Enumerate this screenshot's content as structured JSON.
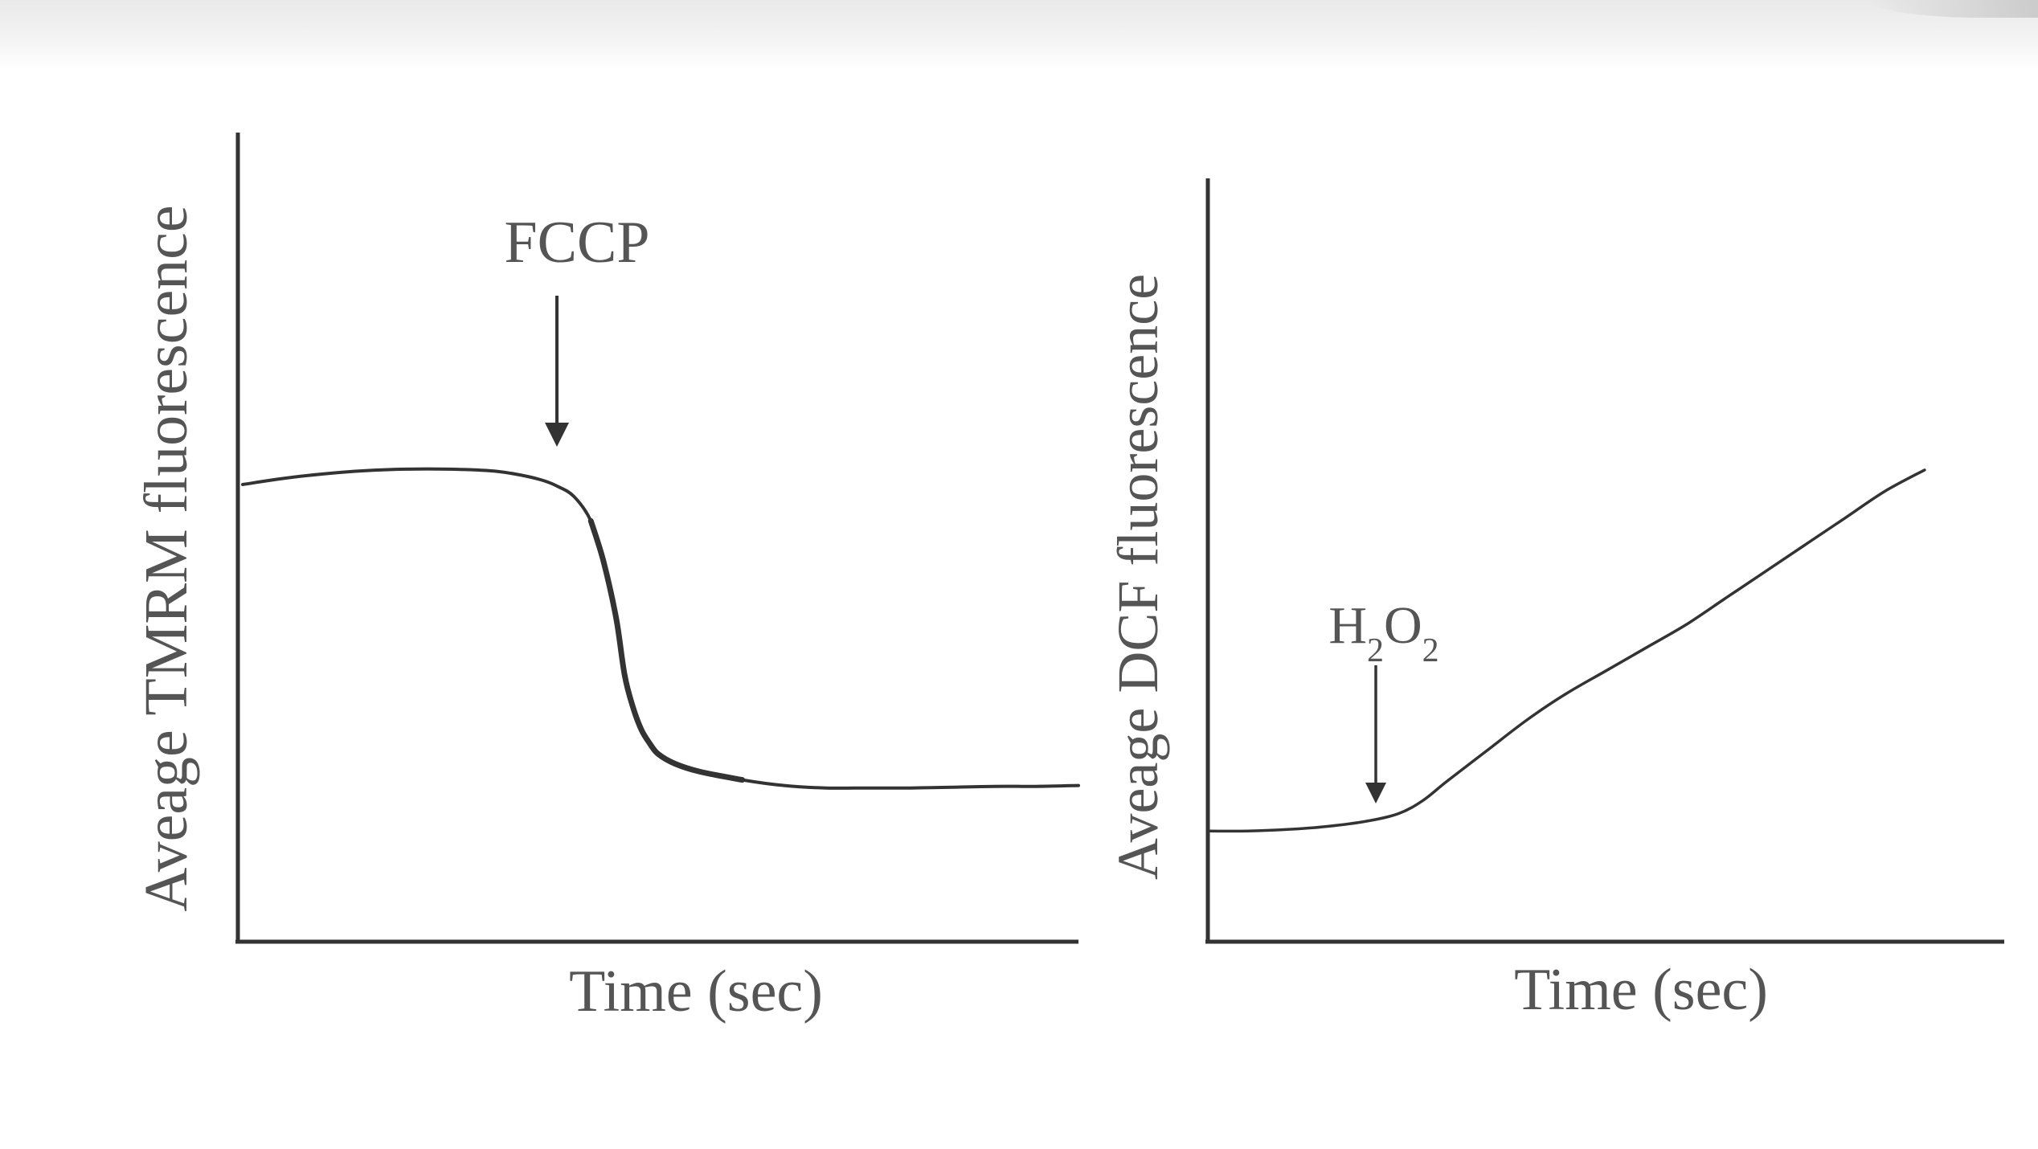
{
  "colors": {
    "ink": "#333333",
    "label": "#555555",
    "background": "#ffffff"
  },
  "chart_data": [
    {
      "type": "line",
      "xlabel": "Time (sec)",
      "ylabel": "Aveage TMRM fluorescence",
      "annotation": "FCCP",
      "annotation_x": 0.38,
      "xlim": [
        0,
        1
      ],
      "ylim": [
        0,
        1
      ],
      "x": [
        0,
        0.05,
        0.1,
        0.15,
        0.2,
        0.25,
        0.3,
        0.33,
        0.36,
        0.38,
        0.4,
        0.42,
        0.435,
        0.45,
        0.46,
        0.47,
        0.48,
        0.49,
        0.5,
        0.52,
        0.55,
        0.6,
        0.65,
        0.7,
        0.75,
        0.8,
        0.85,
        0.9,
        0.95,
        1.0
      ],
      "y": [
        0.565,
        0.572,
        0.578,
        0.582,
        0.584,
        0.584,
        0.582,
        0.578,
        0.571,
        0.563,
        0.55,
        0.52,
        0.47,
        0.4,
        0.33,
        0.29,
        0.262,
        0.245,
        0.232,
        0.22,
        0.21,
        0.2,
        0.193,
        0.19,
        0.19,
        0.19,
        0.191,
        0.192,
        0.192,
        0.193
      ]
    },
    {
      "type": "line",
      "xlabel": "Time (sec)",
      "ylabel": "Aveage DCF fluorescence",
      "annotation": "H2O2",
      "annotation_x": 0.21,
      "xlim": [
        0,
        1
      ],
      "ylim": [
        0,
        1
      ],
      "x": [
        0,
        0.05,
        0.1,
        0.15,
        0.2,
        0.24,
        0.27,
        0.3,
        0.35,
        0.4,
        0.45,
        0.5,
        0.55,
        0.6,
        0.65,
        0.7,
        0.75,
        0.8,
        0.85,
        0.9
      ],
      "y": [
        0.145,
        0.145,
        0.147,
        0.151,
        0.158,
        0.168,
        0.185,
        0.21,
        0.25,
        0.29,
        0.325,
        0.355,
        0.385,
        0.415,
        0.45,
        0.485,
        0.52,
        0.555,
        0.59,
        0.618
      ]
    }
  ]
}
